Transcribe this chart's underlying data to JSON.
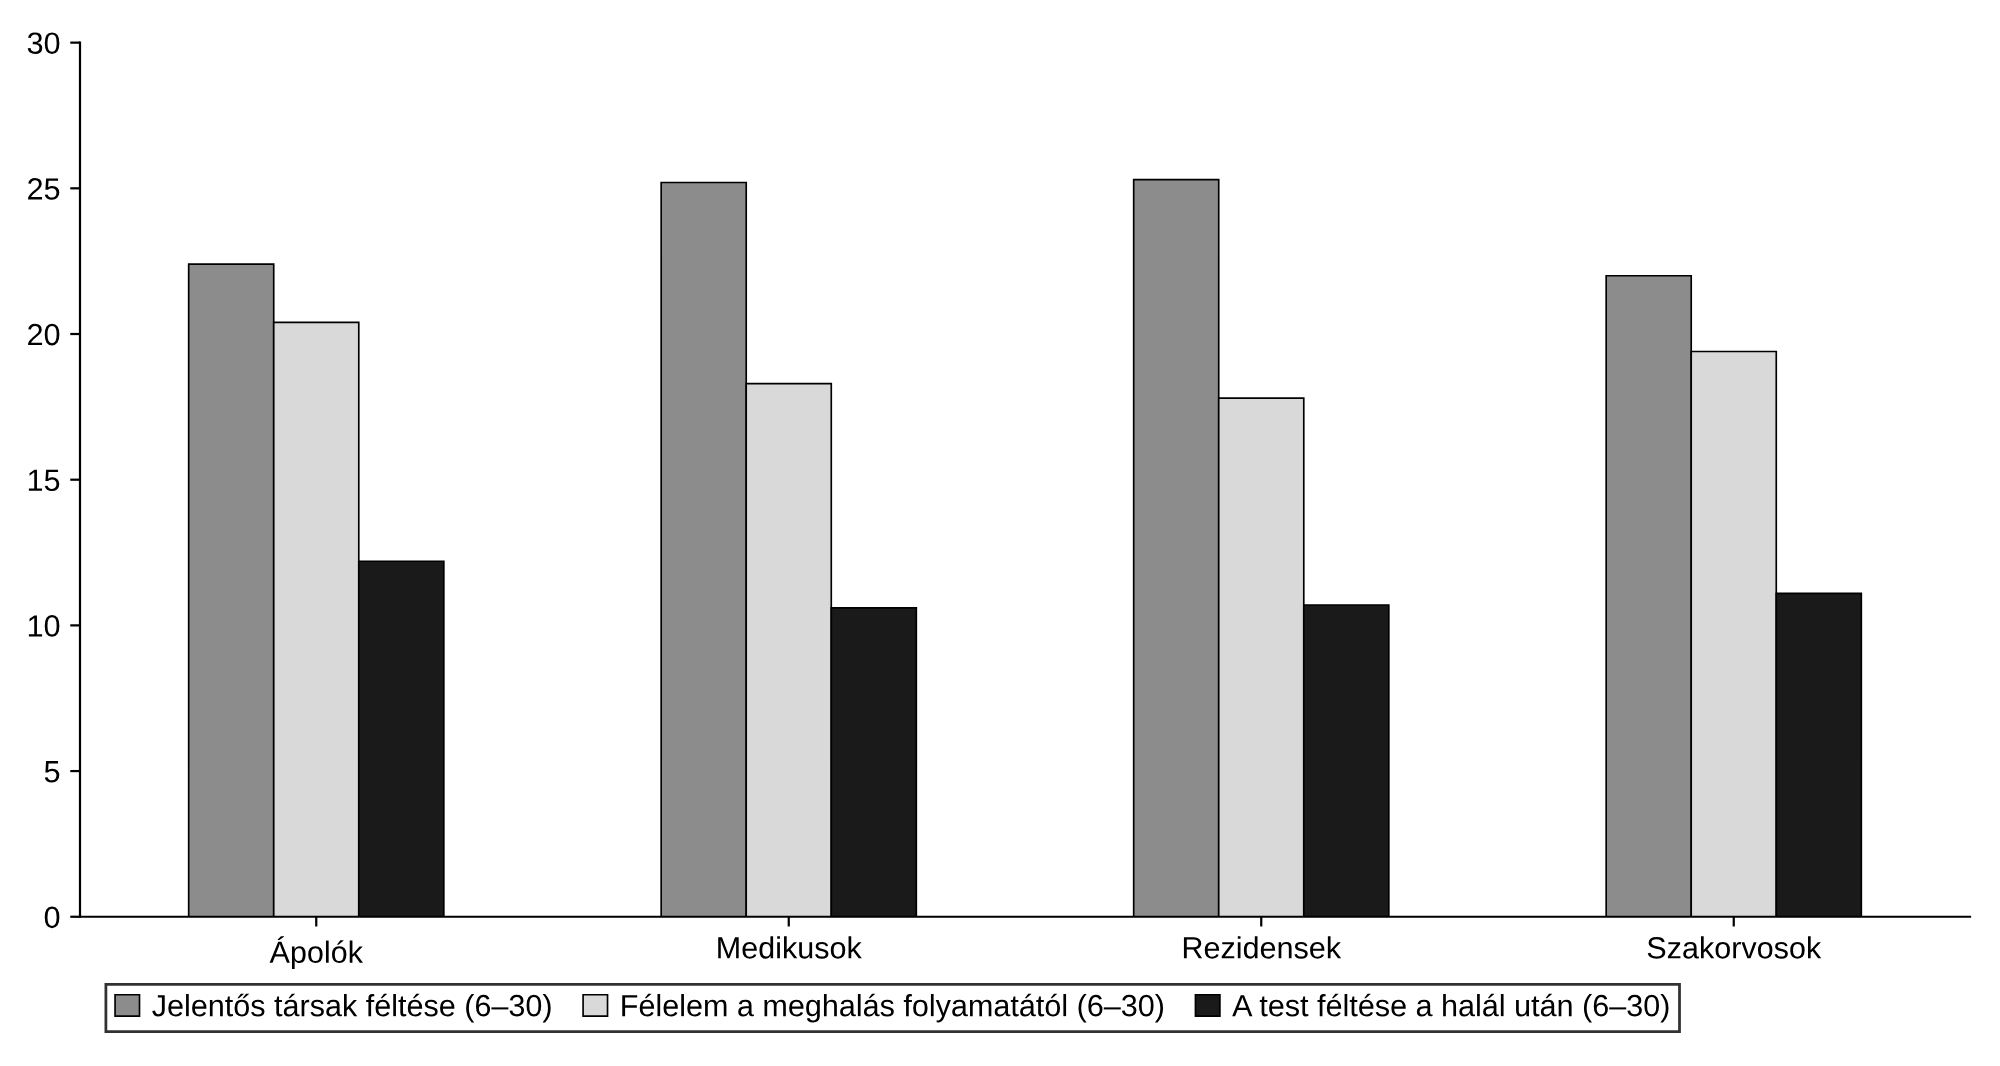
{
  "chart_data": {
    "type": "bar",
    "categories": [
      "Ápolók",
      "Medikusok",
      "Rezidensek",
      "Szakorvosok"
    ],
    "series": [
      {
        "name": "Jelentős társak féltése (6–30)",
        "color": "#8c8c8c",
        "values": [
          22.4,
          25.2,
          25.3,
          22.0
        ]
      },
      {
        "name": "Félelem a meghalás folyamatától (6–30)",
        "color": "#d9d9d9",
        "values": [
          20.4,
          18.3,
          17.8,
          19.4
        ]
      },
      {
        "name": "A test féltése a halál után (6–30)",
        "color": "#1a1a1a",
        "values": [
          12.2,
          10.6,
          10.7,
          11.1
        ]
      }
    ],
    "ylim": [
      0,
      30
    ],
    "yticks": [
      0,
      5,
      10,
      15,
      20,
      25,
      30
    ],
    "grid": false,
    "legend": "bottom"
  }
}
